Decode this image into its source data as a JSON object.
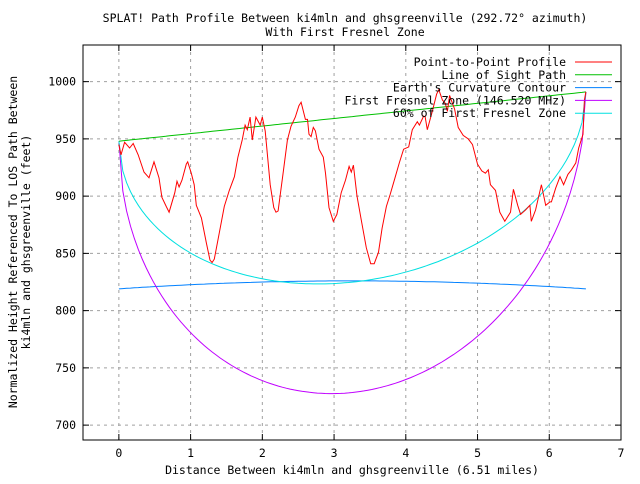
{
  "chart_data": {
    "type": "line",
    "title": [
      "SPLAT! Path Profile Between ki4mln and ghsgreenville (292.72° azimuth)",
      "With First Fresnel Zone"
    ],
    "xlabel": "Distance Between ki4mln and ghsgreenville (6.51 miles)",
    "ylabel": [
      "Normalized Height Referenced To LOS Path Between",
      "ki4mln and ghsgreenville (feet)"
    ],
    "xlim": [
      -0.5,
      7
    ],
    "ylim": [
      687,
      1032
    ],
    "xticks": [
      0,
      1,
      2,
      3,
      4,
      5,
      6,
      7
    ],
    "yticks": [
      700,
      750,
      800,
      850,
      900,
      950,
      1000
    ],
    "grid": true,
    "legend_position": "top-right",
    "path_length_miles": 6.51,
    "series": [
      {
        "name": "Point-to-Point Profile",
        "color": "#ff0000",
        "x": [
          0.0,
          0.03,
          0.08,
          0.15,
          0.2,
          0.27,
          0.35,
          0.42,
          0.49,
          0.56,
          0.6,
          0.66,
          0.7,
          0.78,
          0.81,
          0.84,
          0.88,
          0.94,
          0.96,
          1.01,
          1.05,
          1.08,
          1.15,
          1.22,
          1.27,
          1.3,
          1.33,
          1.4,
          1.47,
          1.54,
          1.61,
          1.66,
          1.72,
          1.76,
          1.79,
          1.83,
          1.86,
          1.91,
          1.97,
          2.0,
          2.04,
          2.11,
          2.16,
          2.19,
          2.22,
          2.29,
          2.35,
          2.4,
          2.46,
          2.51,
          2.54,
          2.6,
          2.63,
          2.65,
          2.68,
          2.71,
          2.74,
          2.79,
          2.85,
          2.88,
          2.93,
          2.99,
          3.04,
          3.1,
          3.16,
          3.21,
          3.24,
          3.27,
          3.32,
          3.38,
          3.45,
          3.51,
          3.56,
          3.62,
          3.67,
          3.73,
          3.78,
          3.85,
          3.91,
          3.97,
          4.04,
          4.09,
          4.16,
          4.19,
          4.25,
          4.27,
          4.3,
          4.37,
          4.43,
          4.46,
          4.51,
          4.55,
          4.58,
          4.61,
          4.68,
          4.73,
          4.8,
          4.87,
          4.93,
          5.0,
          5.06,
          5.11,
          5.15,
          5.18,
          5.25,
          5.31,
          5.38,
          5.46,
          5.5,
          5.56,
          5.6,
          5.67,
          5.73,
          5.75,
          5.81,
          5.89,
          5.95,
          6.01,
          6.03,
          6.09,
          6.15,
          6.2,
          6.26,
          6.31,
          6.37,
          6.41,
          6.47,
          6.49,
          6.51
        ],
        "y": [
          945,
          936,
          947,
          942,
          946,
          936,
          921,
          916,
          930,
          916,
          899,
          891,
          886,
          903,
          913,
          908,
          914,
          928,
          930,
          920,
          910,
          892,
          881,
          859,
          844,
          842,
          845,
          868,
          891,
          905,
          917,
          934,
          949,
          962,
          958,
          969,
          949,
          969,
          962,
          969,
          957,
          910,
          890,
          886,
          887,
          920,
          949,
          961,
          969,
          979,
          982,
          967,
          967,
          954,
          952,
          960,
          957,
          941,
          934,
          920,
          890,
          878,
          884,
          903,
          914,
          926,
          921,
          927,
          900,
          879,
          855,
          841,
          841,
          851,
          872,
          891,
          901,
          916,
          929,
          941,
          943,
          958,
          965,
          962,
          970,
          969,
          958,
          974,
          989,
          993,
          984,
          981,
          974,
          988,
          976,
          960,
          953,
          950,
          945,
          928,
          922,
          920,
          923,
          910,
          905,
          886,
          878,
          886,
          906,
          892,
          884,
          888,
          892,
          878,
          888,
          910,
          892,
          895,
          895,
          907,
          917,
          910,
          919,
          923,
          929,
          942,
          954,
          984,
          991
        ]
      },
      {
        "name": "Line of Sight Path",
        "color": "#00c000",
        "start": 948,
        "end": 991
      },
      {
        "name": "Earth's Curvature Contour",
        "color": "#0080ff",
        "edge": 819,
        "mid": 826
      },
      {
        "name": "First Fresnel Zone (146.520 MHz)",
        "color": "#c000ff",
        "max_radius": 241
      },
      {
        "name": "60% of First Fresnel Zone",
        "color": "#00e0e0",
        "fraction": 0.6
      }
    ]
  }
}
